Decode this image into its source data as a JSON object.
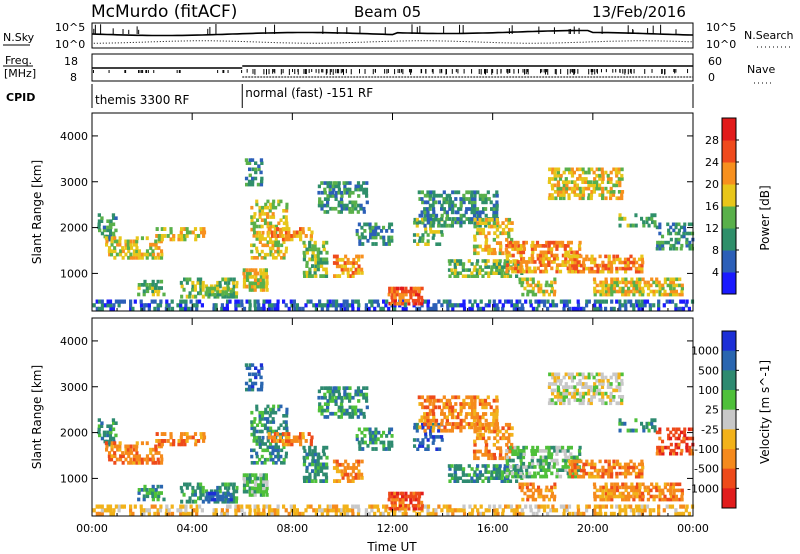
{
  "header": {
    "title": "McMurdo (fitACF)",
    "beam": "Beam 05",
    "date": "13/Feb/2016"
  },
  "strip": {
    "nsky_label": "N.Sky",
    "nsearch_label": "N.Search",
    "nsky_ticks_left": [
      "10^5",
      "10^0"
    ],
    "nsky_ticks_right": [
      "10^5",
      "10^0"
    ],
    "freq_label_1": "Freq.",
    "freq_label_2": "[MHz]",
    "freq_ticks": [
      "18",
      "8"
    ],
    "nave_label": "Nave",
    "nave_ticks": [
      "60",
      "0"
    ],
    "cpid_label": "CPID",
    "cpid_segments": [
      {
        "start_hour": 0,
        "label": "themis 3300 RF"
      },
      {
        "start_hour": 6,
        "label": "normal (fast) -151 RF"
      }
    ]
  },
  "chart_data": [
    {
      "type": "heatmap",
      "title": "Power",
      "xlabel": "",
      "ylabel": "Slant Range [km]",
      "colorbar_label": "Power [dB]",
      "colorbar_ticks": [
        "4",
        "8",
        "12",
        "16",
        "20",
        "24",
        "28"
      ],
      "colorbar_colors": [
        "#1a1aff",
        "#2c5fb8",
        "#2f8f6a",
        "#59b04a",
        "#e8c61a",
        "#f7901e",
        "#ef4a1c",
        "#e21b1b"
      ],
      "x_ticks": [
        "00:00",
        "04:00",
        "08:00",
        "12:00",
        "16:00",
        "20:00",
        "00:00"
      ],
      "xlim": [
        0,
        24
      ],
      "y_ticks": [
        "1000",
        "2000",
        "3000",
        "4000"
      ],
      "ylim": [
        180,
        4500
      ]
    },
    {
      "type": "heatmap",
      "title": "Velocity",
      "xlabel": "Time UT",
      "ylabel": "Slant Range [km]",
      "colorbar_label": "Velocity [m s^-1]",
      "colorbar_ticks": [
        "1000",
        "500",
        "100",
        "25",
        "-25",
        "-100",
        "-500",
        "-1000"
      ],
      "colorbar_colors": [
        "#1c2fd6",
        "#2a66b0",
        "#2e8a70",
        "#4fc03a",
        "#c8c8c8",
        "#f2b21a",
        "#f58a1c",
        "#ee4a1a",
        "#e11c1c"
      ],
      "x_ticks": [
        "00:00",
        "04:00",
        "08:00",
        "12:00",
        "16:00",
        "20:00",
        "00:00"
      ],
      "xlim": [
        0,
        24
      ],
      "y_ticks": [
        "1000",
        "2000",
        "3000",
        "4000"
      ],
      "ylim": [
        180,
        4500
      ]
    }
  ]
}
